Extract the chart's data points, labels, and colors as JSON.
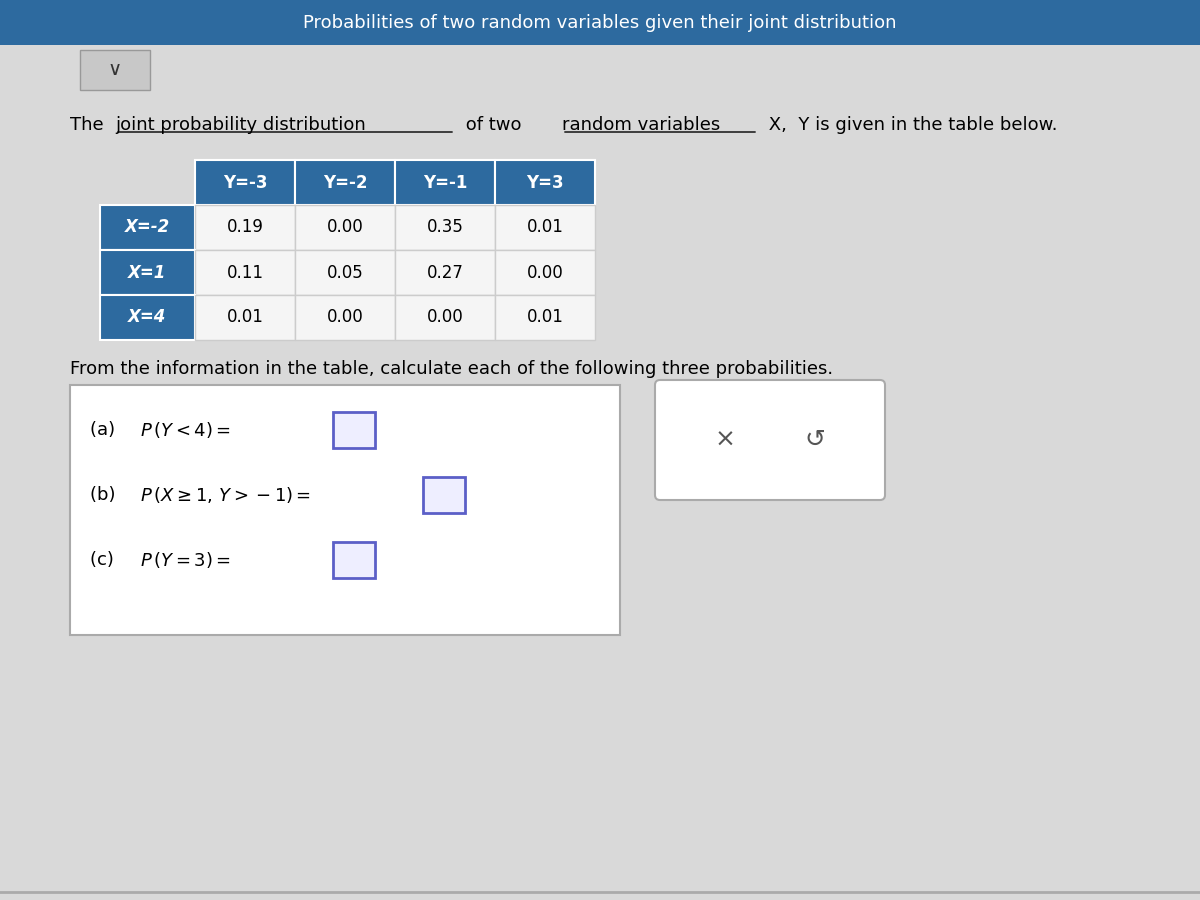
{
  "title_bar_text": "Probabilities of two random variables given their joint distribution",
  "title_bar_color": "#2d6a9f",
  "bg_color": "#d9d9d9",
  "intro_text": "The joint probability distribution of two random variables X, Y is given in the table below.",
  "col_headers": [
    "Y=-3",
    "Y=-2",
    "Y=-1",
    "Y=3"
  ],
  "row_headers": [
    "X=-2",
    "X=1",
    "X=4"
  ],
  "table_data": [
    [
      0.19,
      0.0,
      0.35,
      0.01
    ],
    [
      0.11,
      0.05,
      0.27,
      0.0
    ],
    [
      0.01,
      0.0,
      0.0,
      0.01
    ]
  ],
  "header_bg": "#2d6a9f",
  "header_fg": "#ffffff",
  "row_header_bg": "#2d6a9f",
  "row_header_fg": "#ffffff",
  "cell_bg": "#f5f5f5",
  "cell_fg": "#000000",
  "table_border": "#aaaaaa",
  "from_text": "From the information in the table, calculate each of the following three probabilities.",
  "question_a": "(a)  P(Y < 4) = ",
  "question_b": "(b)  P(X ≥ 1, Y > −1) = ",
  "question_c": "(c)  P(Y = 3) = ",
  "answer_box_color": "#5b5fc7",
  "answer_box_bg": "#eeeeff",
  "questions_box_border": "#aaaaaa",
  "side_box_text_x": "X",
  "side_box_text_undo": "↺"
}
